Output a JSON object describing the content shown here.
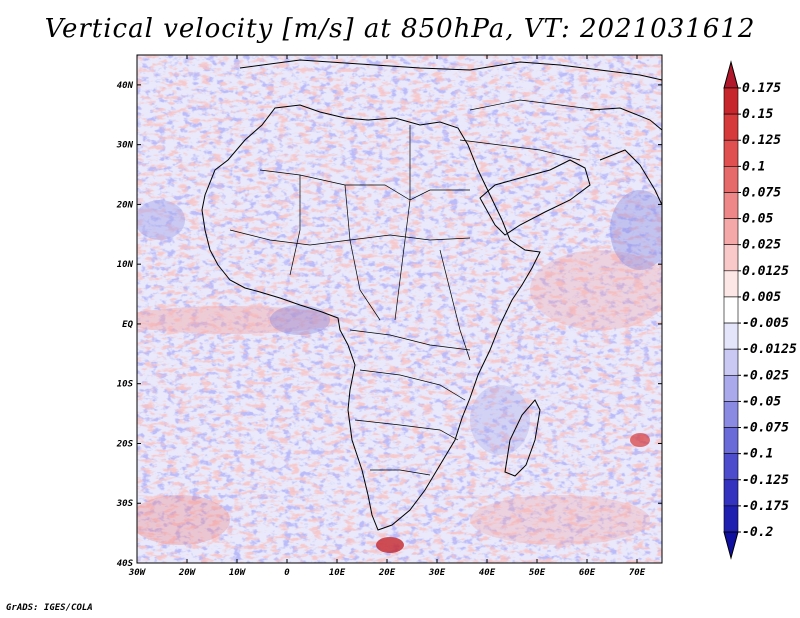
{
  "title": "Vertical velocity [m/s] at 850hPa, VT: 2021031612",
  "footer": "GrADS: IGES/COLA",
  "map": {
    "region": "Africa and surrounding oceans",
    "lon_range": [
      -30,
      75
    ],
    "lat_range": [
      -40,
      45
    ],
    "x_ticks": [
      "30W",
      "20W",
      "10W",
      "0",
      "10E",
      "20E",
      "30E",
      "40E",
      "50E",
      "60E",
      "70E"
    ],
    "y_ticks": [
      "40N",
      "30N",
      "20N",
      "10N",
      "EQ",
      "10S",
      "20S",
      "30S",
      "40S"
    ]
  },
  "colorbar": {
    "levels": [
      "0.175",
      "0.15",
      "0.125",
      "0.1",
      "0.075",
      "0.05",
      "0.025",
      "0.0125",
      "0.005",
      "-0.005",
      "-0.0125",
      "-0.025",
      "-0.05",
      "-0.075",
      "-0.1",
      "-0.125",
      "-0.175",
      "-0.2"
    ],
    "colors": [
      "#b2182b",
      "#c6262c",
      "#d73a3a",
      "#e05050",
      "#e76a6a",
      "#ee8888",
      "#f4a8a8",
      "#f9c9c9",
      "#fde6e6",
      "#ffffff",
      "#e4e4fb",
      "#c9c9f3",
      "#a9a9eb",
      "#8a8ae2",
      "#6a6ad8",
      "#4c4ccd",
      "#3333c0",
      "#1f1fb0",
      "#1010a0"
    ]
  }
}
